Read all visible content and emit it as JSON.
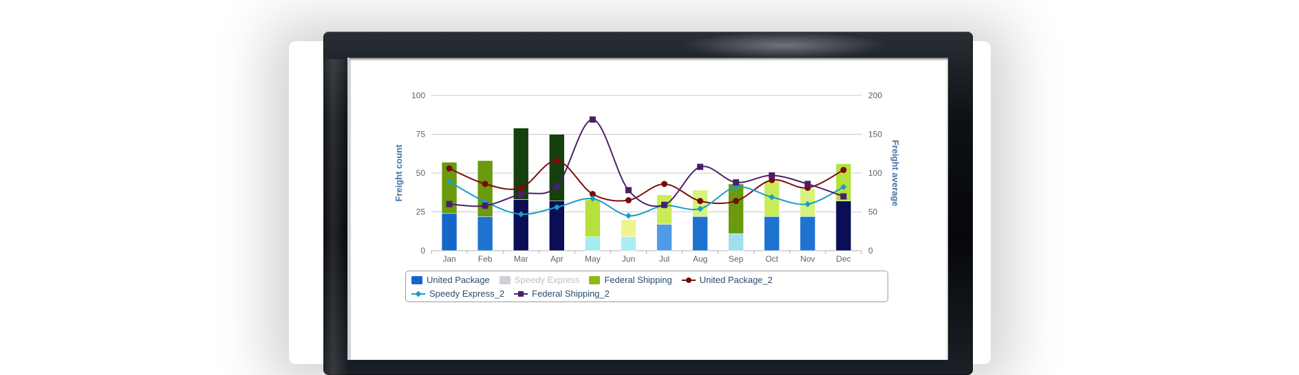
{
  "chart_data": {
    "type": "bar",
    "categories": [
      "Jan",
      "Feb",
      "Mar",
      "Apr",
      "May",
      "Jun",
      "Jul",
      "Aug",
      "Sep",
      "Oct",
      "Nov",
      "Dec"
    ],
    "y_left": {
      "label": "Freight count",
      "ticks": [
        "0",
        "25",
        "50",
        "75",
        "100"
      ],
      "ylim": [
        0,
        100
      ]
    },
    "y_right": {
      "label": "Freight average",
      "ticks": [
        "0",
        "50",
        "100",
        "150",
        "200"
      ],
      "ylim": [
        0,
        200
      ]
    },
    "series": [
      {
        "name": "United Package",
        "type": "column",
        "color": "#1566c8",
        "values": [
          24,
          22,
          33,
          32,
          0,
          0,
          17,
          22,
          0,
          22,
          22,
          32
        ],
        "point_colors": [
          "#1566c8",
          "#1e73d0",
          "#0b0e55",
          "#0b0e55",
          null,
          null,
          "#4f9be8",
          "#1e73d0",
          null,
          "#1e73d0",
          "#1e73d0",
          "#0b0e55"
        ]
      },
      {
        "name": "Speedy Express",
        "type": "column",
        "color": "#cfcfd6",
        "visible": false,
        "values": [
          0,
          0,
          0,
          0,
          9,
          9,
          0,
          0,
          11,
          0,
          0,
          0
        ],
        "point_colors": [
          null,
          null,
          null,
          null,
          "#a4ecf2",
          "#a8eef3",
          null,
          null,
          "#9fdff0",
          null,
          null,
          null
        ]
      },
      {
        "name": "Federal Shipping",
        "type": "column",
        "color": "#8dbb12",
        "values": [
          33,
          36,
          46,
          43,
          24,
          11,
          19,
          17,
          32,
          23,
          18,
          24
        ],
        "point_colors": [
          "#6a9a0d",
          "#6a9a0d",
          "#13400d",
          "#13400d",
          "#b6e03c",
          "#eef58e",
          "#c9ec56",
          "#d6f47a",
          "#6a9a0d",
          "#c9ec56",
          "#d6f47a",
          "#b6e03c"
        ]
      },
      {
        "name": "United Package_2",
        "type": "line",
        "color": "#7b0a0a",
        "marker": "circle",
        "values": [
          106,
          86,
          81,
          116,
          73,
          65,
          86,
          64,
          64,
          91,
          81,
          104
        ]
      },
      {
        "name": "Speedy Express_2",
        "type": "line",
        "color": "#1b9cc9",
        "marker": "diamond",
        "values": [
          89,
          63,
          47,
          56,
          67,
          45,
          58,
          54,
          82,
          69,
          60,
          82
        ]
      },
      {
        "name": "Federal Shipping_2",
        "type": "line",
        "color": "#4a1f66",
        "marker": "square",
        "values": [
          60,
          58,
          73,
          83,
          169,
          78,
          59,
          108,
          88,
          97,
          86,
          70
        ]
      }
    ],
    "grid": true,
    "legend": "bottom"
  }
}
